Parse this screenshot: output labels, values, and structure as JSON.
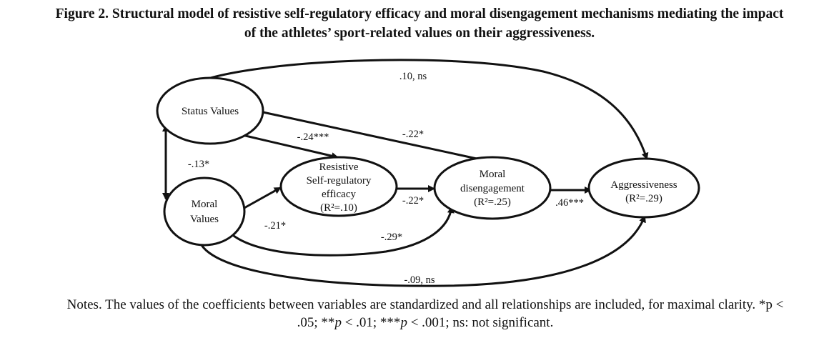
{
  "figure": {
    "title_line1": "Figure 2. Structural model of resistive self-regulatory efficacy and moral disengagement mechanisms mediating the impact",
    "title_line2": "of the athletes’ sport-related values on their aggressiveness."
  },
  "nodes": {
    "status_values": {
      "line1": "Status Values"
    },
    "moral_values": {
      "line1": "Moral",
      "line2": "Values"
    },
    "resistive_efficacy": {
      "line1": "Resistive",
      "line2": "Self-regulatory",
      "line3": "efficacy",
      "r2": "(R²=.10)"
    },
    "moral_disengagement": {
      "line1": "Moral",
      "line2": "disengagement",
      "r2": "(R²=.25)"
    },
    "aggressiveness": {
      "line1": "Aggressiveness",
      "r2": "(R²=.29)"
    }
  },
  "paths": {
    "status_to_aggr": ".10, ns",
    "status_to_disengage": "-.22*",
    "status_to_efficacy": "-.24***",
    "status_moral_corr": "-.13*",
    "efficacy_to_disengage": "-.22*",
    "disengage_to_aggr": ".46***",
    "moral_to_efficacy": "-.21*",
    "moral_to_disengage": "-.29*",
    "moral_to_aggr": "-.09, ns"
  },
  "notes": {
    "line1": "Notes. The values of the coefficients between variables are standardized and all relationships are included, for maximal clarity. *p <",
    "part1": ".05; **",
    "p1": "p",
    "part2": " < .01; ***",
    "p2": "p",
    "part3": " < .001; ns: not significant."
  }
}
